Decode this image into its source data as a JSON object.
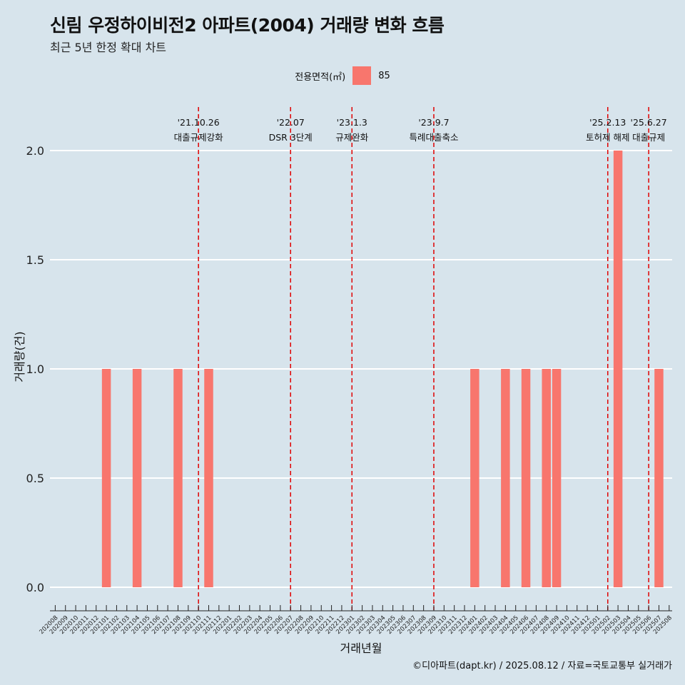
{
  "title": "신림 우정하이비전2 아파트(2004) 거래량 변화 흐름",
  "subtitle": "최근 5년 한정 확대 차트",
  "legend": {
    "title": "전용면적(㎡)",
    "label": "85",
    "color": "#f8766d"
  },
  "caption": "©디아파트(dapt.kr) / 2025.08.12 / 자료=국토교통부 실거래가",
  "colors": {
    "background": "#d7e4ec",
    "bar": "#f8766d",
    "grid": "#ffffff",
    "event_line": "#e00000"
  },
  "chart_data": {
    "type": "bar",
    "xlabel": "거래년월",
    "ylabel": "거래량(건)",
    "ylim": [
      0,
      2
    ],
    "yticks": [
      "0.0",
      "0.5",
      "1.0",
      "1.5",
      "2.0"
    ],
    "legend_position": "top",
    "grid": true,
    "categories": [
      "202008",
      "202009",
      "202010",
      "202011",
      "202012",
      "202101",
      "202102",
      "202103",
      "202104",
      "202105",
      "202106",
      "202107",
      "202108",
      "202109",
      "202110",
      "202111",
      "202112",
      "202201",
      "202202",
      "202203",
      "202204",
      "202205",
      "202206",
      "202207",
      "202208",
      "202209",
      "202210",
      "202211",
      "202212",
      "202301",
      "202302",
      "202303",
      "202304",
      "202305",
      "202306",
      "202307",
      "202308",
      "202309",
      "202310",
      "202311",
      "202312",
      "202401",
      "202402",
      "202403",
      "202404",
      "202405",
      "202406",
      "202407",
      "202408",
      "202409",
      "202410",
      "202411",
      "202412",
      "202501",
      "202502",
      "202503",
      "202504",
      "202505",
      "202506",
      "202507",
      "202508"
    ],
    "series": [
      {
        "name": "85",
        "values": [
          0,
          0,
          0,
          0,
          0,
          1,
          0,
          0,
          1,
          0,
          0,
          0,
          1,
          0,
          0,
          1,
          0,
          0,
          0,
          0,
          0,
          0,
          0,
          0,
          0,
          0,
          0,
          0,
          0,
          0,
          0,
          0,
          0,
          0,
          0,
          0,
          0,
          0,
          0,
          0,
          0,
          1,
          0,
          0,
          1,
          0,
          1,
          0,
          1,
          1,
          0,
          0,
          0,
          0,
          0,
          2,
          0,
          0,
          0,
          1,
          0
        ]
      }
    ],
    "events": [
      {
        "date": "'21.10.26",
        "label": "대출규제강화",
        "x": "202110"
      },
      {
        "date": "'22.07",
        "label": "DSR 3단계",
        "x": "202207"
      },
      {
        "date": "'23.1.3",
        "label": "규제완화",
        "x": "202301"
      },
      {
        "date": "'23.9.7",
        "label": "특례대출축소",
        "x": "202309"
      },
      {
        "date": "'25.2.13",
        "label": "토허제 해제",
        "x": "202502"
      },
      {
        "date": "'25.6.27",
        "label": "대출규제",
        "x": "202506"
      }
    ]
  }
}
